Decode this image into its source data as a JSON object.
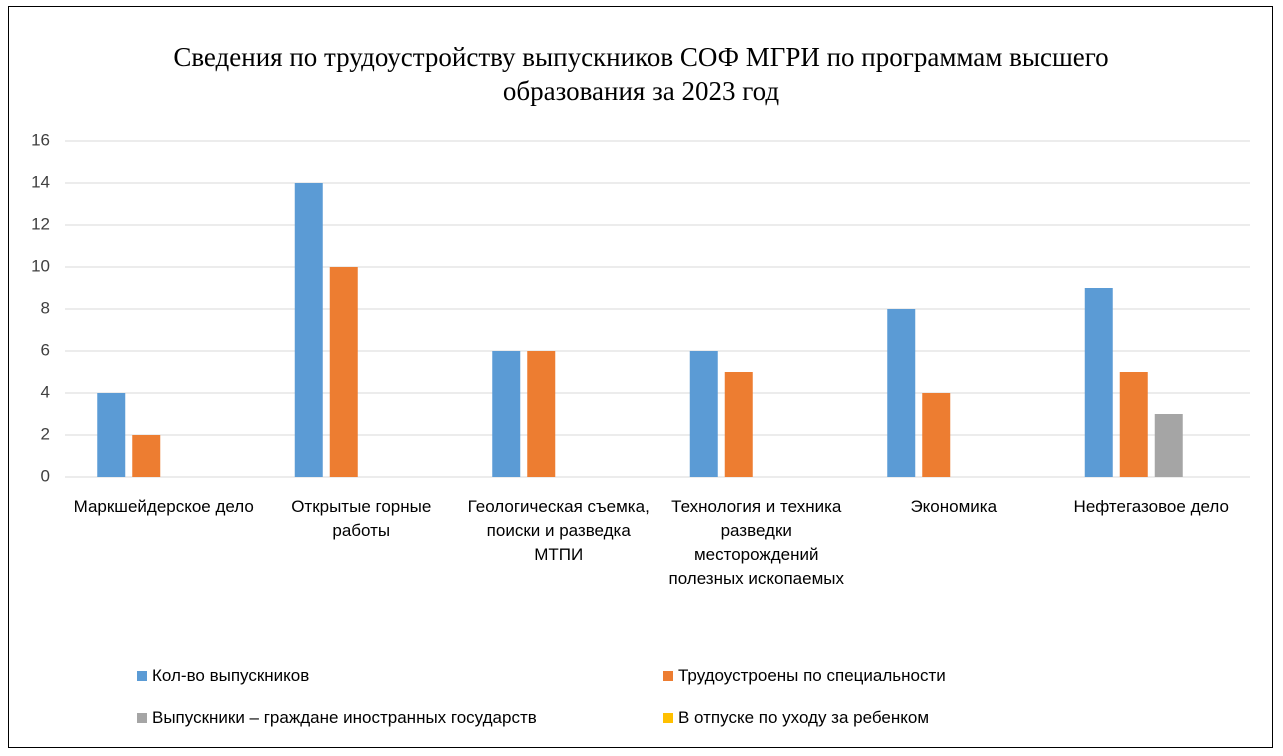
{
  "chart_data": {
    "type": "bar",
    "title": "Сведения по трудоустройству выпускников СОФ МГРИ по программам высшего образования за 2023 год",
    "categories": [
      "Маркшейдерское дело",
      "Открытые горные работы",
      "Геологическая съемка, поиски и разведка МТПИ",
      "Технология и техника разведки месторождений полезных ископаемых",
      "Экономика",
      "Нефтегазовое дело"
    ],
    "series": [
      {
        "name": "Кол-во выпускников",
        "color": "#5b9bd5",
        "values": [
          4,
          14,
          6,
          6,
          8,
          9
        ]
      },
      {
        "name": "Трудоустроены по специальности",
        "color": "#ed7d31",
        "values": [
          2,
          10,
          6,
          5,
          4,
          5
        ]
      },
      {
        "name": "Выпускники – граждане иностранных государств",
        "color": "#a5a5a5",
        "values": [
          0,
          0,
          0,
          0,
          0,
          3
        ]
      },
      {
        "name": "В отпуске по уходу за ребенком",
        "color": "#ffc000",
        "values": [
          0,
          0,
          0,
          0,
          0,
          0
        ]
      }
    ],
    "ylim": [
      0,
      16
    ],
    "yticks": [
      0,
      2,
      4,
      6,
      8,
      10,
      12,
      14,
      16
    ],
    "grid": true,
    "legend": "bottom"
  }
}
